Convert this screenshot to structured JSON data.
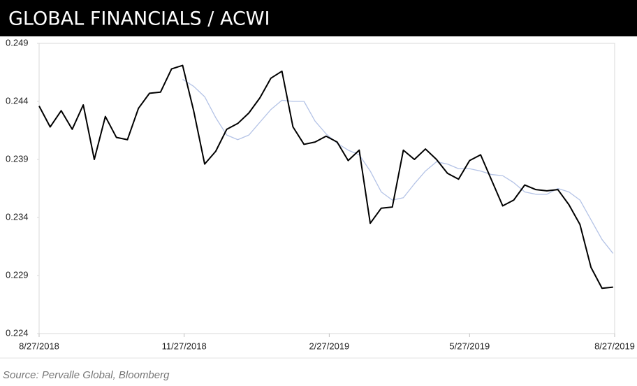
{
  "chart_data": {
    "type": "line",
    "title": "GLOBAL FINANCIALS / ACWI",
    "source": "Source: Pervalle Global, Bloomberg",
    "x": [
      "2018-08-27",
      "2018-09-03",
      "2018-09-10",
      "2018-09-17",
      "2018-09-24",
      "2018-10-01",
      "2018-10-08",
      "2018-10-15",
      "2018-10-22",
      "2018-10-29",
      "2018-11-05",
      "2018-11-12",
      "2018-11-19",
      "2018-11-26",
      "2018-12-03",
      "2018-12-10",
      "2018-12-17",
      "2018-12-24",
      "2018-12-31",
      "2019-01-07",
      "2019-01-14",
      "2019-01-21",
      "2019-01-28",
      "2019-02-04",
      "2019-02-11",
      "2019-02-18",
      "2019-02-25",
      "2019-03-04",
      "2019-03-11",
      "2019-03-18",
      "2019-03-25",
      "2019-04-01",
      "2019-04-08",
      "2019-04-15",
      "2019-04-22",
      "2019-04-29",
      "2019-05-06",
      "2019-05-13",
      "2019-05-20",
      "2019-05-27",
      "2019-06-03",
      "2019-06-10",
      "2019-06-17",
      "2019-06-24",
      "2019-07-01",
      "2019-07-08",
      "2019-07-15",
      "2019-07-22",
      "2019-07-29",
      "2019-08-05",
      "2019-08-12",
      "2019-08-19",
      "2019-08-26"
    ],
    "series": [
      {
        "color": "#000000",
        "values": [
          0.2436,
          0.2418,
          0.2432,
          0.2416,
          0.2437,
          0.239,
          0.2427,
          0.2409,
          0.2407,
          0.2434,
          0.2447,
          0.2448,
          0.2468,
          0.2471,
          0.2432,
          0.2386,
          0.2397,
          0.2416,
          0.2421,
          0.243,
          0.2443,
          0.246,
          0.2466,
          0.2418,
          0.2403,
          0.2405,
          0.241,
          0.2405,
          0.2389,
          0.2398,
          0.2335,
          0.2348,
          0.2349,
          0.2398,
          0.239,
          0.2399,
          0.239,
          0.2378,
          0.2373,
          0.2389,
          0.2394,
          0.2372,
          0.235,
          0.2355,
          0.2368,
          0.2364,
          0.2363,
          0.2364,
          0.2351,
          0.2334,
          0.2297,
          0.2279,
          0.228
        ]
      },
      {
        "color": "#b4c3e6",
        "values": [
          null,
          null,
          null,
          null,
          null,
          null,
          null,
          null,
          null,
          null,
          null,
          null,
          null,
          0.2459,
          0.2453,
          0.2444,
          0.2426,
          0.2411,
          0.2407,
          0.2411,
          0.2422,
          0.2433,
          0.2441,
          0.244,
          0.244,
          0.2423,
          0.2412,
          0.2404,
          0.2398,
          0.2394,
          0.238,
          0.2362,
          0.2355,
          0.2357,
          0.2369,
          0.238,
          0.2388,
          0.2386,
          0.2382,
          0.2382,
          0.238,
          0.2377,
          0.2376,
          0.237,
          0.2362,
          0.236,
          0.236,
          0.2365,
          0.2362,
          0.2355,
          0.2338,
          0.2321,
          0.2309
        ]
      }
    ],
    "xlim": [
      "2018-08-27",
      "2019-08-27"
    ],
    "xticks": [
      {
        "value": "2018-08-27",
        "label": "8/27/2018"
      },
      {
        "value": "2018-11-27",
        "label": "11/27/2018"
      },
      {
        "value": "2019-02-27",
        "label": "2/27/2019"
      },
      {
        "value": "2019-05-27",
        "label": "5/27/2019"
      },
      {
        "value": "2019-08-27",
        "label": "8/27/2019"
      }
    ],
    "ylim": [
      0.224,
      0.249
    ],
    "yticks": [
      0.224,
      0.229,
      0.234,
      0.239,
      0.244,
      0.249
    ]
  }
}
